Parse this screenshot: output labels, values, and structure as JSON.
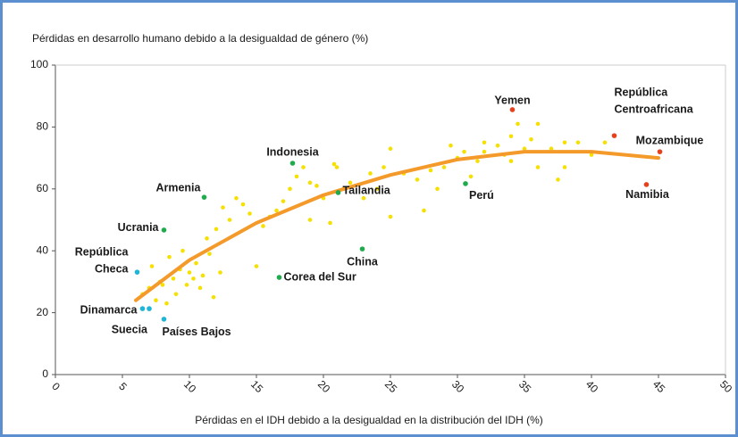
{
  "chart_data": {
    "type": "scatter",
    "ylabel": "Pérdidas en desarrollo humano debido a la desigualdad de género (%)",
    "xlabel": "Pérdidas en el IDH debido a la desigualdad en la distribución del IDH (%)",
    "xlim": [
      0,
      50
    ],
    "xticks": [
      0,
      5,
      10,
      15,
      20,
      25,
      30,
      35,
      40,
      45,
      50
    ],
    "ylim": [
      0,
      100
    ],
    "yticks": [
      0,
      20,
      40,
      60,
      80,
      100
    ],
    "background": {
      "color": "#f5e000",
      "x": [
        6.5,
        7,
        7.2,
        7.5,
        7.8,
        8,
        8.3,
        8.5,
        8.8,
        9,
        9.3,
        9.5,
        9.8,
        10,
        10.3,
        10.5,
        10.8,
        11,
        11.3,
        11.5,
        11.8,
        12,
        12.3,
        12.5,
        13,
        13.5,
        14,
        14.5,
        15,
        15.5,
        16,
        16.5,
        17,
        17.5,
        18,
        18.5,
        19,
        19,
        19.5,
        20,
        20.5,
        20.8,
        21,
        21.5,
        22,
        23,
        23.5,
        24,
        24.5,
        25,
        25,
        26,
        27,
        27.5,
        28,
        28.5,
        29,
        29.5,
        30,
        30.5,
        31,
        31.5,
        32,
        32,
        33,
        33.5,
        34,
        34,
        34.5,
        35,
        35.5,
        36,
        36,
        37,
        37.5,
        38,
        38,
        39,
        40,
        41
      ],
      "values": [
        26,
        28,
        35,
        24,
        30,
        29,
        23,
        38,
        31,
        26,
        34,
        40,
        29,
        33,
        31,
        36,
        28,
        32,
        44,
        39,
        25,
        47,
        33,
        54,
        50,
        57,
        55,
        52,
        35,
        48,
        51,
        53,
        56,
        60,
        64,
        67,
        50,
        62,
        61,
        57,
        49,
        68,
        67,
        60,
        62,
        57,
        65,
        60,
        67,
        51,
        73,
        65,
        63,
        53,
        66,
        60,
        67,
        74,
        70,
        72,
        64,
        69,
        75,
        72,
        74,
        71,
        77,
        69,
        81,
        73,
        76,
        67,
        81,
        73,
        63,
        67,
        75,
        75,
        71,
        75
      ]
    },
    "trend": {
      "color": "#f39a2a",
      "x": [
        6,
        10,
        15,
        20,
        25,
        30,
        35,
        40,
        45
      ],
      "values": [
        24,
        37,
        49,
        58,
        64.5,
        69.5,
        72,
        72,
        70
      ]
    },
    "points": [
      {
        "label": [
          "Yemen"
        ],
        "x": 34.1,
        "y": 85.6,
        "color": "#e8401c"
      },
      {
        "label": [
          "República",
          "Centroafricana"
        ],
        "x": 41.7,
        "y": 77.2,
        "color": "#e8401c"
      },
      {
        "label": [
          "Mozambique"
        ],
        "x": 45.1,
        "y": 72.0,
        "color": "#e8401c"
      },
      {
        "label": [
          "Namibia"
        ],
        "x": 44.1,
        "y": 61.4,
        "color": "#e8401c"
      },
      {
        "label": [
          "Perú"
        ],
        "x": 30.6,
        "y": 61.7,
        "color": "#1faa4b"
      },
      {
        "label": [
          "China"
        ],
        "x": 22.9,
        "y": 40.6,
        "color": "#1faa4b"
      },
      {
        "label": [
          "Tailandia"
        ],
        "x": 21.1,
        "y": 58.8,
        "color": "#1faa4b"
      },
      {
        "label": [
          "Indonesia"
        ],
        "x": 17.7,
        "y": 68.3,
        "color": "#1faa4b"
      },
      {
        "label": [
          "Corea del Sur"
        ],
        "x": 16.7,
        "y": 31.4,
        "color": "#1faa4b"
      },
      {
        "label": [
          "Armenia"
        ],
        "x": 11.1,
        "y": 57.3,
        "color": "#1faa4b"
      },
      {
        "label": [
          "Ucrania"
        ],
        "x": 8.1,
        "y": 46.7,
        "color": "#1faa4b"
      },
      {
        "label": [
          "República",
          "Checa"
        ],
        "x": 6.1,
        "y": 33.1,
        "color": "#1fb5d6"
      },
      {
        "label": [
          "Dinamarca"
        ],
        "x": 6.5,
        "y": 21.3,
        "color": "#1fb5d6"
      },
      {
        "label": [
          "Suecia"
        ],
        "x": 7.0,
        "y": 21.3,
        "color": "#1fb5d6"
      },
      {
        "label": [
          "Países Bajos"
        ],
        "x": 8.1,
        "y": 17.9,
        "color": "#1fb5d6"
      }
    ]
  }
}
